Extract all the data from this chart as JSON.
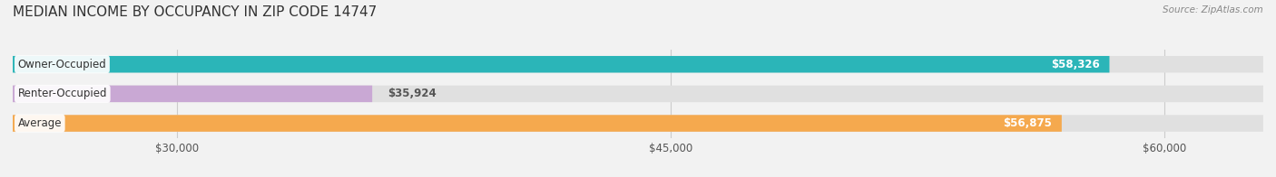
{
  "title": "MEDIAN INCOME BY OCCUPANCY IN ZIP CODE 14747",
  "source": "Source: ZipAtlas.com",
  "categories": [
    "Owner-Occupied",
    "Renter-Occupied",
    "Average"
  ],
  "values": [
    58326,
    35924,
    56875
  ],
  "bar_colors": [
    "#2bb5b8",
    "#c9a8d4",
    "#f5a94e"
  ],
  "value_labels": [
    "$58,326",
    "$35,924",
    "$56,875"
  ],
  "x_min": 25000,
  "x_max": 63000,
  "x_ticks": [
    30000,
    45000,
    60000
  ],
  "x_tick_labels": [
    "$30,000",
    "$45,000",
    "$60,000"
  ],
  "background_color": "#f2f2f2",
  "bar_background": "#e0e0e0",
  "title_fontsize": 11,
  "bar_height": 0.55
}
